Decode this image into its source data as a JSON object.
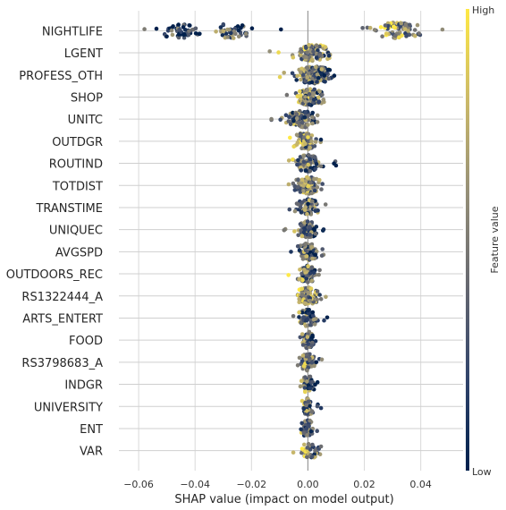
{
  "chart_data": {
    "type": "scatter",
    "subtype": "shap-beeswarm",
    "xlabel": "SHAP value (impact on model output)",
    "xlim": [
      -0.067,
      0.055
    ],
    "xticks": [
      -0.06,
      -0.04,
      -0.02,
      0.0,
      0.02,
      0.04
    ],
    "xtick_labels": [
      "−0.06",
      "−0.04",
      "−0.02",
      "0.00",
      "0.02",
      "0.04"
    ],
    "zero_line": 0,
    "grid": true,
    "colorbar": {
      "title": "Feature value",
      "high_label": "High",
      "low_label": "Low",
      "colormap": [
        "#00204c",
        "#31446b",
        "#666870",
        "#958f78",
        "#cbb969",
        "#ffe945"
      ]
    },
    "features": [
      {
        "name": "NIGHTLIFE",
        "clusters": [
          {
            "center": -0.045,
            "min": -0.062,
            "max": -0.032,
            "n": 55,
            "height": 0.9,
            "valuebias": 0.18
          },
          {
            "center": -0.027,
            "min": -0.034,
            "max": -0.008,
            "n": 45,
            "height": 0.9,
            "valuebias": 0.22
          },
          {
            "center": 0.032,
            "min": 0.019,
            "max": 0.05,
            "n": 80,
            "height": 1.0,
            "valuebias": 0.55
          }
        ]
      },
      {
        "name": "LGENT",
        "min": -0.014,
        "max": 0.013,
        "center": 0.002,
        "n": 110,
        "valuebias": 0.6
      },
      {
        "name": "PROFESS_OTH",
        "min": -0.014,
        "max": 0.012,
        "center": 0.002,
        "n": 140,
        "valuebias": 0.45
      },
      {
        "name": "SHOP",
        "min": -0.01,
        "max": 0.011,
        "center": 0.001,
        "n": 110,
        "valuebias": 0.45
      },
      {
        "name": "UNITC",
        "min": -0.013,
        "max": 0.009,
        "center": -0.002,
        "n": 90,
        "valuebias": 0.4
      },
      {
        "name": "OUTDGR",
        "min": -0.011,
        "max": 0.007,
        "center": -0.001,
        "n": 80,
        "valuebias": 0.55
      },
      {
        "name": "ROUTIND",
        "min": -0.008,
        "max": 0.01,
        "center": 0.0,
        "n": 75,
        "valuebias": 0.4
      },
      {
        "name": "TOTDIST",
        "min": -0.009,
        "max": 0.009,
        "center": 0.0,
        "n": 90,
        "valuebias": 0.5
      },
      {
        "name": "TRANSTIME",
        "min": -0.008,
        "max": 0.008,
        "center": 0.0,
        "n": 80,
        "valuebias": 0.45
      },
      {
        "name": "UNIQUEC",
        "min": -0.009,
        "max": 0.006,
        "center": 0.0,
        "n": 75,
        "valuebias": 0.4
      },
      {
        "name": "AVGSPD",
        "min": -0.008,
        "max": 0.007,
        "center": 0.0,
        "n": 80,
        "valuebias": 0.4
      },
      {
        "name": "OUTDOORS_REC",
        "min": -0.008,
        "max": 0.007,
        "center": 0.0,
        "n": 75,
        "valuebias": 0.45
      },
      {
        "name": "RS1322444_A",
        "min": -0.008,
        "max": 0.009,
        "center": 0.0,
        "n": 95,
        "valuebias": 0.55
      },
      {
        "name": "ARTS_ENTERT",
        "min": -0.007,
        "max": 0.007,
        "center": 0.0,
        "n": 70,
        "valuebias": 0.35
      },
      {
        "name": "FOOD",
        "min": -0.006,
        "max": 0.005,
        "center": 0.0,
        "n": 55,
        "valuebias": 0.4
      },
      {
        "name": "RS3798683_A",
        "min": -0.006,
        "max": 0.005,
        "center": 0.0,
        "n": 70,
        "valuebias": 0.5
      },
      {
        "name": "INDGR",
        "min": -0.004,
        "max": 0.005,
        "center": 0.0,
        "n": 50,
        "valuebias": 0.4
      },
      {
        "name": "UNIVERSITY",
        "min": -0.005,
        "max": 0.005,
        "center": 0.0,
        "n": 55,
        "valuebias": 0.4
      },
      {
        "name": "ENT",
        "min": -0.005,
        "max": 0.004,
        "center": 0.0,
        "n": 50,
        "valuebias": 0.4
      },
      {
        "name": "VAR",
        "min": -0.007,
        "max": 0.006,
        "center": 0.001,
        "n": 50,
        "valuebias": 0.55
      }
    ]
  }
}
